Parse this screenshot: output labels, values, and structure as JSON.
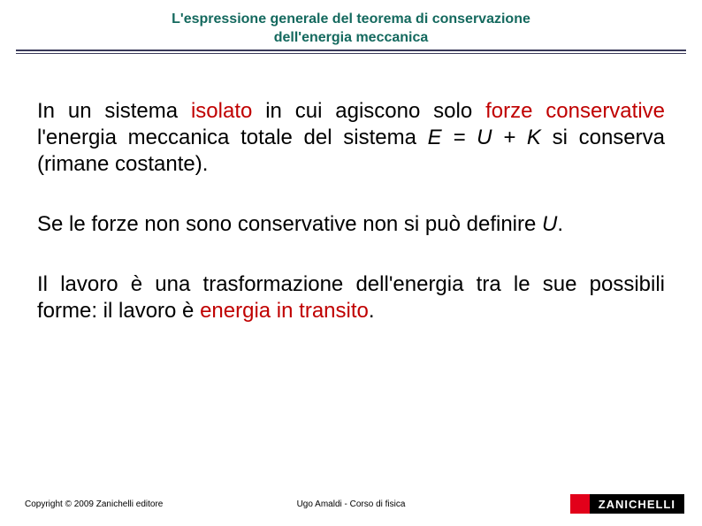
{
  "header": {
    "title_line1": "L'espressione generale del teorema di conservazione",
    "title_line2": "dell'energia meccanica",
    "title_color": "#14695e",
    "rule_color": "#3a3a5a"
  },
  "paragraphs": {
    "p1": {
      "t1": "In un sistema ",
      "hl1": "isolato",
      "t2": " in cui agiscono solo ",
      "hl2": "forze conservative",
      "t3": " l'energia meccanica totale del sistema ",
      "formula": "E = U + K",
      "t4": " si conserva (rimane costante)."
    },
    "p2": {
      "t1": "Se le forze non sono conservative non si può definire ",
      "var": "U",
      "t2": "."
    },
    "p3": {
      "t1": "Il lavoro è una trasformazione dell'energia tra le sue possibili forme: il lavoro è ",
      "hl1": "energia in transito",
      "t2": "."
    }
  },
  "footer": {
    "copyright": "Copyright © 2009 Zanichelli editore",
    "center": "Ugo Amaldi - Corso di fisica",
    "logo_text": "ZANICHELLI",
    "logo_red": "#e2001a",
    "logo_black": "#000000"
  },
  "colors": {
    "highlight": "#c00000",
    "text": "#000000",
    "background": "#ffffff"
  },
  "typography": {
    "title_fontsize": 16,
    "body_fontsize": 24,
    "footer_fontsize": 10
  }
}
